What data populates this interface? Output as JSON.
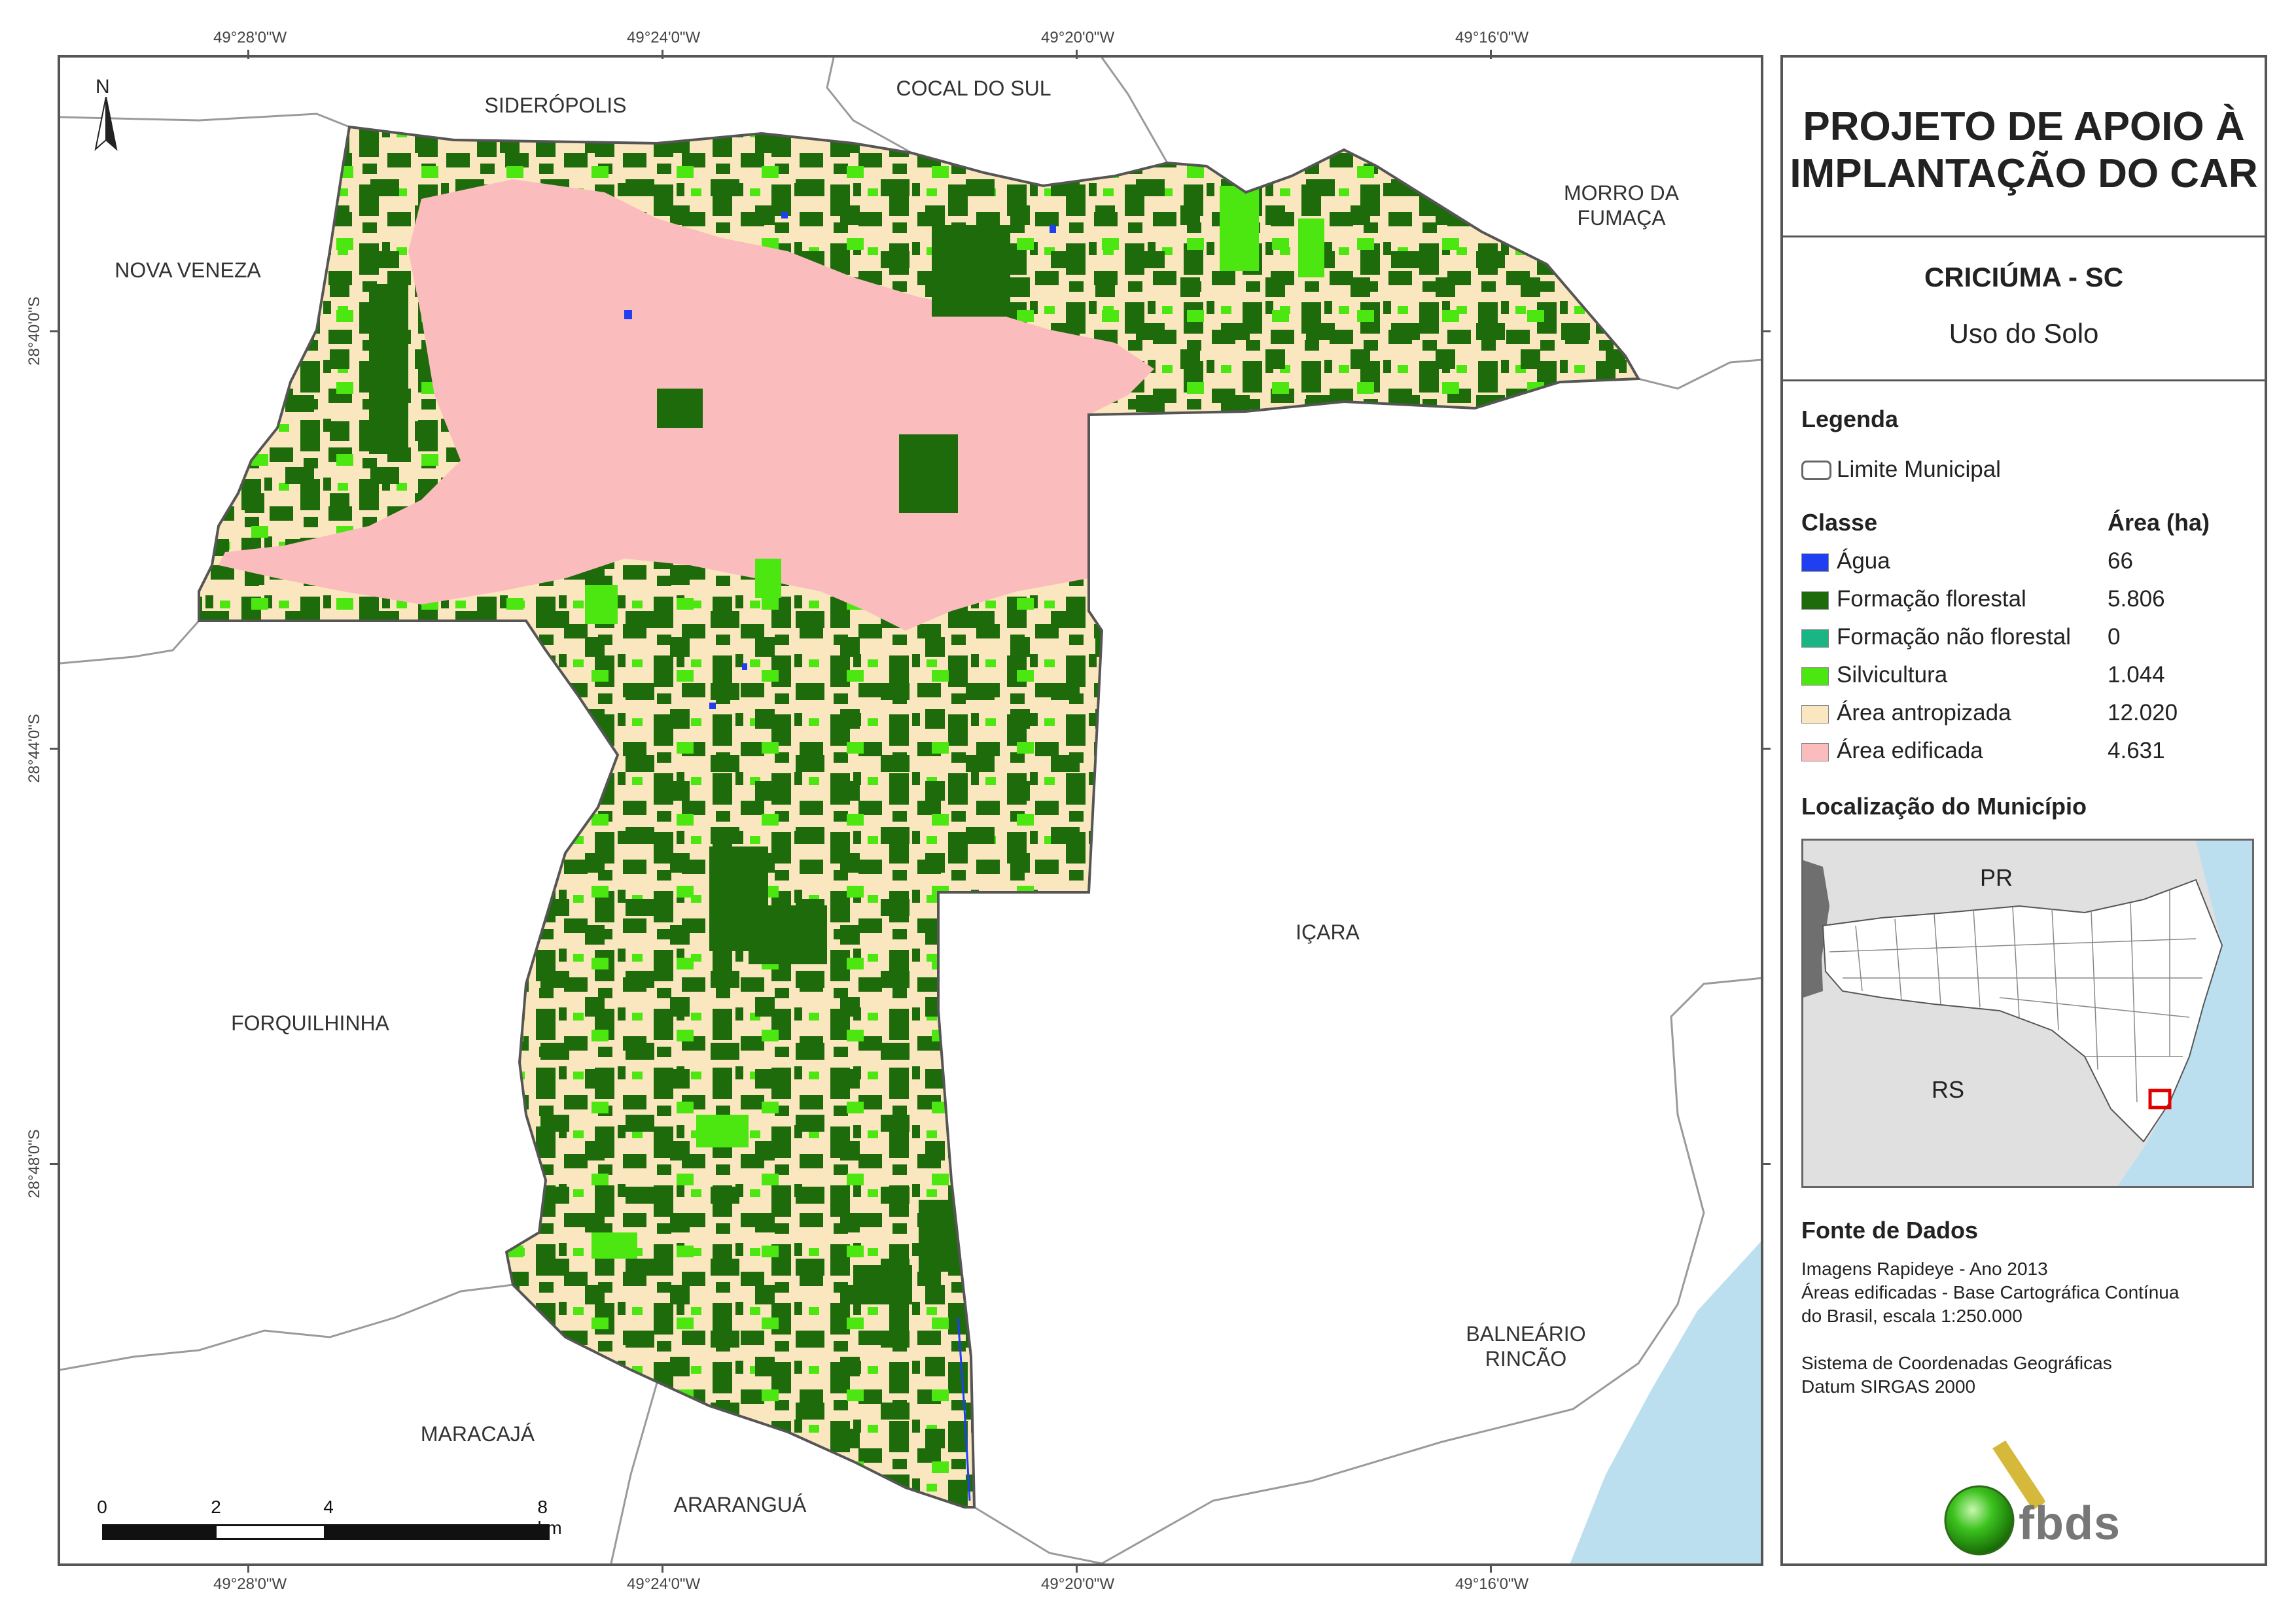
{
  "map": {
    "graticule": {
      "top_longitudes": [
        "49°28'0\"W",
        "49°24'0\"W",
        "49°20'0\"W",
        "49°16'0\"W"
      ],
      "bottom_longitudes": [
        "49°28'0\"W",
        "49°24'0\"W",
        "49°20'0\"W",
        "49°16'0\"W"
      ],
      "latitudes": [
        "28°40'0\"S",
        "28°44'0\"S",
        "28°48'0\"S"
      ]
    },
    "north_arrow": "N",
    "neighbors": [
      {
        "id": "sideropolis",
        "label": "SIDERÓPOLIS"
      },
      {
        "id": "cocal",
        "label": "COCAL DO SUL"
      },
      {
        "id": "morro",
        "label": "MORRO DA\nFUMAÇA"
      },
      {
        "id": "nova-veneza",
        "label": "NOVA VENEZA"
      },
      {
        "id": "icara",
        "label": "IÇARA"
      },
      {
        "id": "forquilhinha",
        "label": "FORQUILHINHA"
      },
      {
        "id": "balneario",
        "label": "BALNEÁRIO\nRINCÃO"
      },
      {
        "id": "maracaja",
        "label": "MARACAJÁ"
      },
      {
        "id": "ararangua",
        "label": "ARARANGUÁ"
      }
    ],
    "scale_bar": {
      "labels": [
        "0",
        "2",
        "4",
        "8 km"
      ],
      "km_marks": [
        0,
        2,
        4,
        8
      ]
    }
  },
  "panel": {
    "title": "PROJETO DE APOIO À\nIMPLANTAÇÃO DO CAR",
    "municipality": "CRICIÚMA - SC",
    "subtitle": "Uso do Solo",
    "legend": {
      "heading": "Legenda",
      "boundary_label": "Limite Municipal",
      "class_header": "Classe",
      "area_header": "Área (ha)",
      "classes": [
        {
          "name": "Água",
          "area": "66",
          "color": "#1f3ff0"
        },
        {
          "name": "Formação florestal",
          "area": "5.806",
          "color": "#1e6b0c"
        },
        {
          "name": "Formação não florestal",
          "area": "0",
          "color": "#1ab584"
        },
        {
          "name": "Silvicultura",
          "area": "1.044",
          "color": "#4ce610"
        },
        {
          "name": "Área antropizada",
          "area": "12.020",
          "color": "#fbe7bf"
        },
        {
          "name": "Área edificada",
          "area": "4.631",
          "color": "#fbbcbd"
        }
      ]
    },
    "location": {
      "heading": "Localização do Município",
      "labels": [
        "PR",
        "RS"
      ]
    },
    "sources": {
      "heading": "Fonte de Dados",
      "lines": [
        "Imagens Rapideye - Ano 2013",
        "Áreas edificadas - Base Cartográfica Contínua",
        "do Brasil, escala 1:250.000",
        "",
        "Sistema de Coordenadas Geográficas",
        "Datum SIRGAS 2000"
      ]
    },
    "logo": {
      "text": "fbds",
      "color": "#777777",
      "ball_color": "#3cc21e"
    }
  }
}
